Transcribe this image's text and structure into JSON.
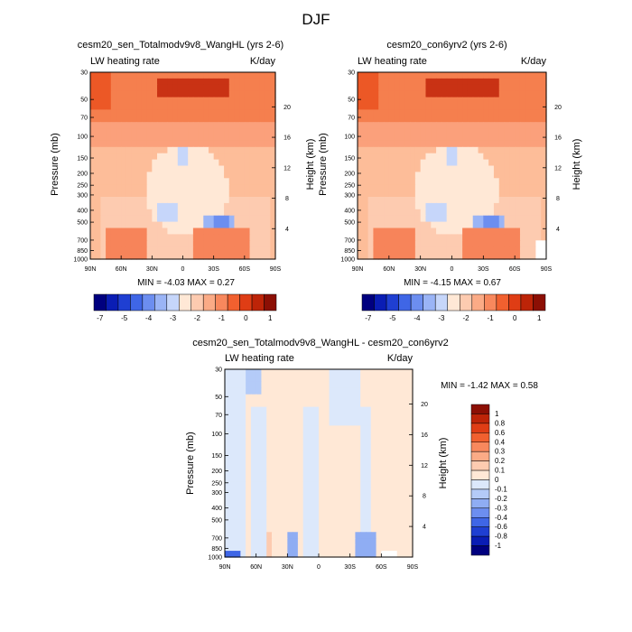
{
  "main_title": "DJF",
  "chart_data": [
    {
      "type": "heatmap",
      "title": "cesm20_sen_Totalmodv9v8_WangHL (yrs 2-6)",
      "left_label": "LW heating rate",
      "right_label": "K/day",
      "ylabel": "Pressure (mb)",
      "ylabel_right": "Height (km)",
      "x_ticks": [
        "90N",
        "60N",
        "30N",
        "0",
        "30S",
        "60S",
        "90S"
      ],
      "x_range": [
        90,
        -90
      ],
      "y_ticks": [
        "30",
        "50",
        "70",
        "100",
        "150",
        "200",
        "250",
        "300",
        "400",
        "500",
        "700",
        "850",
        "1000"
      ],
      "y_values": [
        30,
        50,
        70,
        100,
        150,
        200,
        250,
        300,
        400,
        500,
        700,
        850,
        1000
      ],
      "y_range": [
        1000,
        30
      ],
      "height_ticks": [
        "20",
        "16",
        "12",
        "8",
        "4"
      ],
      "height_values": [
        20,
        16,
        12,
        8,
        4
      ],
      "min_max_text": "MIN =  -4.03   MAX =    0.27",
      "colorbar_labels": [
        "-7",
        "-5",
        "-4",
        "-3",
        "-2",
        "-1",
        "0",
        "1"
      ],
      "colorbar_colors": [
        "#00007f",
        "#0a1db4",
        "#1f3fd2",
        "#3f66e6",
        "#6c8ef0",
        "#9ab4f6",
        "#c6d6fa",
        "#ffe8d6",
        "#fdcbb0",
        "#fbab86",
        "#f8885d",
        "#f1602f",
        "#df3d15",
        "#bd2408",
        "#8c0f04"
      ],
      "field": "lw_total"
    },
    {
      "type": "heatmap",
      "title": "cesm20_con6yrv2 (yrs 2-6)",
      "left_label": "LW heating rate",
      "right_label": "K/day",
      "ylabel": "Pressure (mb)",
      "ylabel_right": "Height (km)",
      "x_ticks": [
        "90N",
        "60N",
        "30N",
        "0",
        "30S",
        "60S",
        "90S"
      ],
      "x_range": [
        90,
        -90
      ],
      "y_ticks": [
        "30",
        "50",
        "70",
        "100",
        "150",
        "200",
        "250",
        "300",
        "400",
        "500",
        "700",
        "850",
        "1000"
      ],
      "y_values": [
        30,
        50,
        70,
        100,
        150,
        200,
        250,
        300,
        400,
        500,
        700,
        850,
        1000
      ],
      "y_range": [
        1000,
        30
      ],
      "height_ticks": [
        "20",
        "16",
        "12",
        "8",
        "4"
      ],
      "height_values": [
        20,
        16,
        12,
        8,
        4
      ],
      "min_max_text": "MIN =  -4.15   MAX =    0.67",
      "colorbar_labels": [
        "-7",
        "-5",
        "-4",
        "-3",
        "-2",
        "-1",
        "0",
        "1"
      ],
      "colorbar_colors": [
        "#00007f",
        "#0a1db4",
        "#1f3fd2",
        "#3f66e6",
        "#6c8ef0",
        "#9ab4f6",
        "#c6d6fa",
        "#ffe8d6",
        "#fdcbb0",
        "#fbab86",
        "#f8885d",
        "#f1602f",
        "#df3d15",
        "#bd2408",
        "#8c0f04"
      ],
      "field": "lw_total"
    },
    {
      "type": "heatmap",
      "title": "cesm20_sen_Totalmodv9v8_WangHL - cesm20_con6yrv2",
      "left_label": "LW heating rate",
      "right_label": "K/day",
      "ylabel": "Pressure (mb)",
      "ylabel_right": "Height (km)",
      "x_ticks": [
        "90N",
        "60N",
        "30N",
        "0",
        "30S",
        "60S",
        "90S"
      ],
      "x_range": [
        90,
        -90
      ],
      "y_ticks": [
        "30",
        "50",
        "70",
        "100",
        "150",
        "200",
        "250",
        "300",
        "400",
        "500",
        "700",
        "850",
        "1000"
      ],
      "y_values": [
        30,
        50,
        70,
        100,
        150,
        200,
        250,
        300,
        400,
        500,
        700,
        850,
        1000
      ],
      "y_range": [
        1000,
        30
      ],
      "height_ticks": [
        "20",
        "16",
        "12",
        "8",
        "4"
      ],
      "height_values": [
        20,
        16,
        12,
        8,
        4
      ],
      "min_max_text": "MIN =  -1.42   MAX =    0.58",
      "colorbar_labels": [
        "1",
        "0.8",
        "0.6",
        "0.4",
        "0.3",
        "0.2",
        "0.1",
        "0",
        "-0.1",
        "-0.2",
        "-0.3",
        "-0.4",
        "-0.6",
        "-0.8",
        "-1"
      ],
      "colorbar_colors": [
        "#8c0f04",
        "#bd2408",
        "#df3d15",
        "#f1602f",
        "#f8885d",
        "#fbab86",
        "#fdcbb0",
        "#ffe8d6",
        "#dce8fb",
        "#b4cbf8",
        "#8fadf3",
        "#6c8ef0",
        "#3f66e6",
        "#1f3fd2",
        "#0a1db4",
        "#00007f"
      ],
      "field": "lw_diff"
    }
  ]
}
